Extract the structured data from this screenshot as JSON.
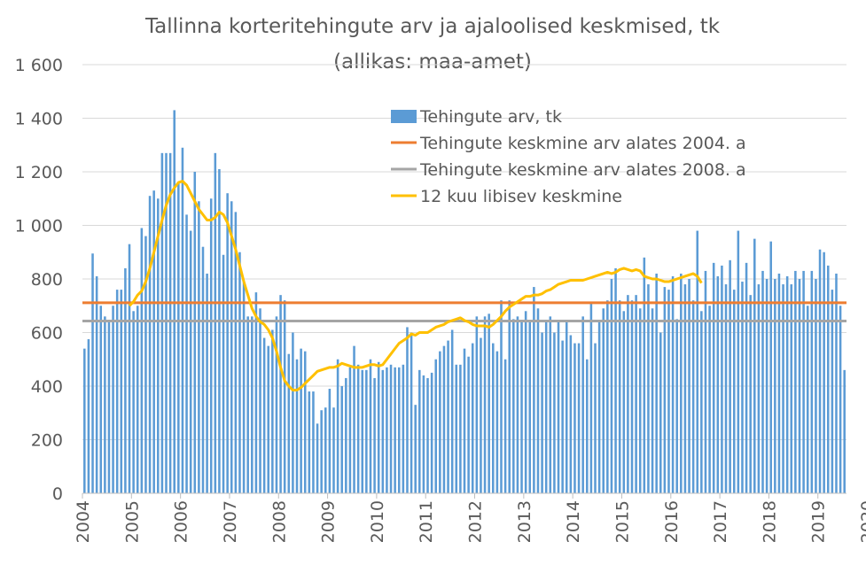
{
  "chart_data": {
    "type": "bar",
    "title": "Tallinna korteritehingute arv ja ajaloolised keskmised, tk",
    "subtitle": "(allikas: maa-amet)",
    "xlabel": "",
    "ylabel": "",
    "ylim": [
      0,
      1600
    ],
    "y_ticks": [
      0,
      200,
      400,
      600,
      800,
      1000,
      1200,
      1400,
      1600
    ],
    "y_tick_labels": [
      "0",
      "200",
      "400",
      "600",
      "800",
      "1 000",
      "1 200",
      "1 400",
      "1 600"
    ],
    "x_tick_labels": [
      "2004",
      "2005",
      "2006",
      "2007",
      "2008",
      "2009",
      "2010",
      "2011",
      "2012",
      "2013",
      "2014",
      "2015",
      "2016",
      "2017",
      "2018",
      "2019",
      "2020"
    ],
    "x_start": "2004-01",
    "grid": "horizontal",
    "legend_position": "top-right",
    "series": [
      {
        "name": "Tehingute arv, tk",
        "kind": "bar",
        "color": "#5B9BD5",
        "values": [
          540,
          575,
          895,
          810,
          700,
          660,
          640,
          700,
          760,
          760,
          840,
          930,
          680,
          700,
          990,
          960,
          1110,
          1130,
          1100,
          1270,
          1270,
          1270,
          1430,
          1160,
          1290,
          1040,
          980,
          1200,
          1090,
          920,
          820,
          1100,
          1270,
          1210,
          890,
          1120,
          1090,
          1050,
          900,
          790,
          660,
          660,
          750,
          690,
          580,
          550,
          610,
          660,
          740,
          720,
          520,
          600,
          500,
          540,
          530,
          380,
          380,
          260,
          310,
          320,
          390,
          320,
          500,
          400,
          430,
          470,
          550,
          480,
          460,
          460,
          500,
          430,
          490,
          460,
          470,
          480,
          470,
          470,
          480,
          620,
          600,
          330,
          460,
          440,
          430,
          450,
          500,
          530,
          550,
          570,
          610,
          480,
          480,
          540,
          510,
          560,
          660,
          580,
          660,
          670,
          560,
          530,
          720,
          500,
          720,
          650,
          660,
          640,
          680,
          640,
          770,
          690,
          600,
          640,
          660,
          600,
          640,
          570,
          640,
          590,
          560,
          560,
          660,
          500,
          710,
          560,
          640,
          690,
          720,
          800,
          840,
          720,
          680,
          740,
          720,
          740,
          690,
          880,
          780,
          690,
          820,
          600,
          770,
          760,
          810,
          650,
          820,
          780,
          800,
          720,
          980,
          680,
          830,
          700,
          860,
          810,
          850,
          780,
          870,
          760,
          980,
          790,
          860,
          740,
          950,
          780,
          830,
          800,
          940,
          800,
          820,
          780,
          810,
          780,
          830,
          800,
          830,
          700,
          830,
          800,
          910,
          900,
          850,
          760,
          820,
          700,
          460
        ]
      },
      {
        "name": "Tehingute keskmine arv alates 2004. a",
        "kind": "hline",
        "color": "#ED7D31",
        "value": 711
      },
      {
        "name": "Tehingute keskmine arv alates 2008. a",
        "kind": "hline",
        "color": "#A5A5A5",
        "value": 643
      },
      {
        "name": "12 kuu libisev keskmine",
        "kind": "line",
        "color": "#FFC000",
        "start_index": 11,
        "values": [
          700,
          715,
          740,
          755,
          790,
          840,
          900,
          960,
          1020,
          1075,
          1115,
          1140,
          1160,
          1165,
          1150,
          1120,
          1090,
          1060,
          1040,
          1020,
          1020,
          1030,
          1050,
          1040,
          1010,
          960,
          910,
          850,
          790,
          740,
          690,
          660,
          640,
          630,
          610,
          580,
          530,
          470,
          420,
          400,
          385,
          385,
          395,
          410,
          425,
          440,
          455,
          460,
          465,
          470,
          470,
          475,
          485,
          480,
          475,
          470,
          470,
          470,
          475,
          480,
          480,
          475,
          480,
          500,
          520,
          540,
          560,
          570,
          580,
          595,
          590,
          600,
          600,
          600,
          610,
          620,
          625,
          630,
          640,
          645,
          650,
          655,
          645,
          640,
          630,
          625,
          625,
          625,
          620,
          630,
          645,
          660,
          680,
          695,
          705,
          715,
          725,
          735,
          735,
          740,
          740,
          745,
          755,
          760,
          770,
          780,
          785,
          790,
          795,
          795,
          795,
          795,
          800,
          805,
          810,
          815,
          820,
          825,
          820,
          825,
          835,
          840,
          835,
          830,
          835,
          830,
          810,
          805,
          800,
          800,
          795,
          790,
          790,
          795,
          800,
          805,
          810,
          815,
          820,
          810,
          785
        ]
      }
    ]
  }
}
